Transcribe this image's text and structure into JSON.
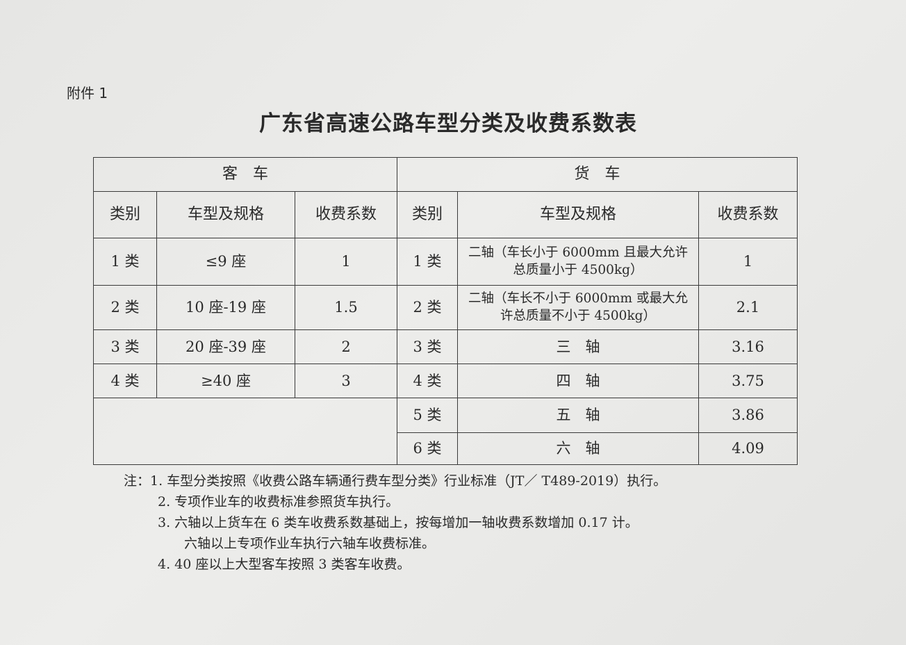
{
  "attachment": "附件 1",
  "title": "广东省高速公路车型分类及收费系数表",
  "groups": {
    "passenger": "客　车",
    "truck": "货　车"
  },
  "headers": {
    "category": "类别",
    "model": "车型及规格",
    "coefficient": "收费系数"
  },
  "passenger_rows": [
    {
      "category": "1 类",
      "model": "≤9 座",
      "coefficient": "1"
    },
    {
      "category": "2 类",
      "model": "10 座-19 座",
      "coefficient": "1.5"
    },
    {
      "category": "3 类",
      "model": "20 座-39 座",
      "coefficient": "2"
    },
    {
      "category": "4 类",
      "model": "≥40 座",
      "coefficient": "3"
    }
  ],
  "truck_rows": [
    {
      "category": "1 类",
      "model": "二轴（车长小于 6000mm 且最大允许总质量小于 4500kg）",
      "coefficient": "1"
    },
    {
      "category": "2 类",
      "model": "二轴（车长不小于 6000mm 或最大允许总质量不小于 4500kg）",
      "coefficient": "2.1"
    },
    {
      "category": "3 类",
      "model": "三　轴",
      "coefficient": "3.16"
    },
    {
      "category": "4 类",
      "model": "四　轴",
      "coefficient": "3.75"
    },
    {
      "category": "5 类",
      "model": "五　轴",
      "coefficient": "3.86"
    },
    {
      "category": "6 类",
      "model": "六　轴",
      "coefficient": "4.09"
    }
  ],
  "notes": [
    "注：1.  车型分类按照《收费公路车辆通行费车型分类》行业标准（JT／ T489-2019）执行。",
    "2.  专项作业车的收费标准参照货车执行。",
    "3.  六轴以上货车在 6 类车收费系数基础上，按每增加一轴收费系数增加 0.17 计。",
    "六轴以上专项作业车执行六轴车收费标准。",
    "4.  40 座以上大型客车按照 3 类客车收费。"
  ]
}
